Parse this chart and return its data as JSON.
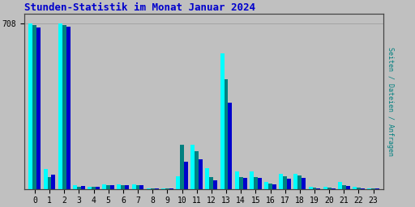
{
  "title": "Stunden-Statistik im Monat Januar 2024",
  "ytick_label": "708",
  "ytick_value": 708,
  "hours": [
    0,
    1,
    2,
    3,
    4,
    5,
    6,
    7,
    8,
    9,
    10,
    11,
    12,
    13,
    14,
    15,
    16,
    17,
    18,
    19,
    20,
    21,
    22,
    23
  ],
  "anfragen": [
    708,
    85,
    708,
    15,
    10,
    18,
    18,
    18,
    2,
    2,
    55,
    190,
    90,
    580,
    75,
    75,
    28,
    65,
    65,
    8,
    8,
    28,
    7,
    3
  ],
  "seiten": [
    700,
    50,
    700,
    8,
    8,
    14,
    14,
    14,
    1,
    1,
    190,
    160,
    50,
    470,
    50,
    50,
    22,
    52,
    58,
    4,
    4,
    14,
    4,
    2
  ],
  "dateien": [
    690,
    60,
    695,
    11,
    9,
    16,
    16,
    16,
    1,
    1,
    115,
    125,
    38,
    370,
    46,
    46,
    18,
    42,
    48,
    3,
    3,
    11,
    3,
    1
  ],
  "color_anfragen": "#00FFFF",
  "color_seiten": "#008080",
  "color_dateien": "#0000CC",
  "background_plot": "#C0C0C0",
  "background_fig": "#C0C0C0",
  "title_color": "#0000CC",
  "ylim": [
    0,
    750
  ],
  "bar_width": 0.27,
  "ylabel_right_parts": [
    [
      "Seiten",
      "#0000AA"
    ],
    [
      " / ",
      "#555555"
    ],
    [
      "Dateien",
      "#008080"
    ],
    [
      " / ",
      "#555555"
    ],
    [
      "Anfragen",
      "#CC0000"
    ]
  ]
}
